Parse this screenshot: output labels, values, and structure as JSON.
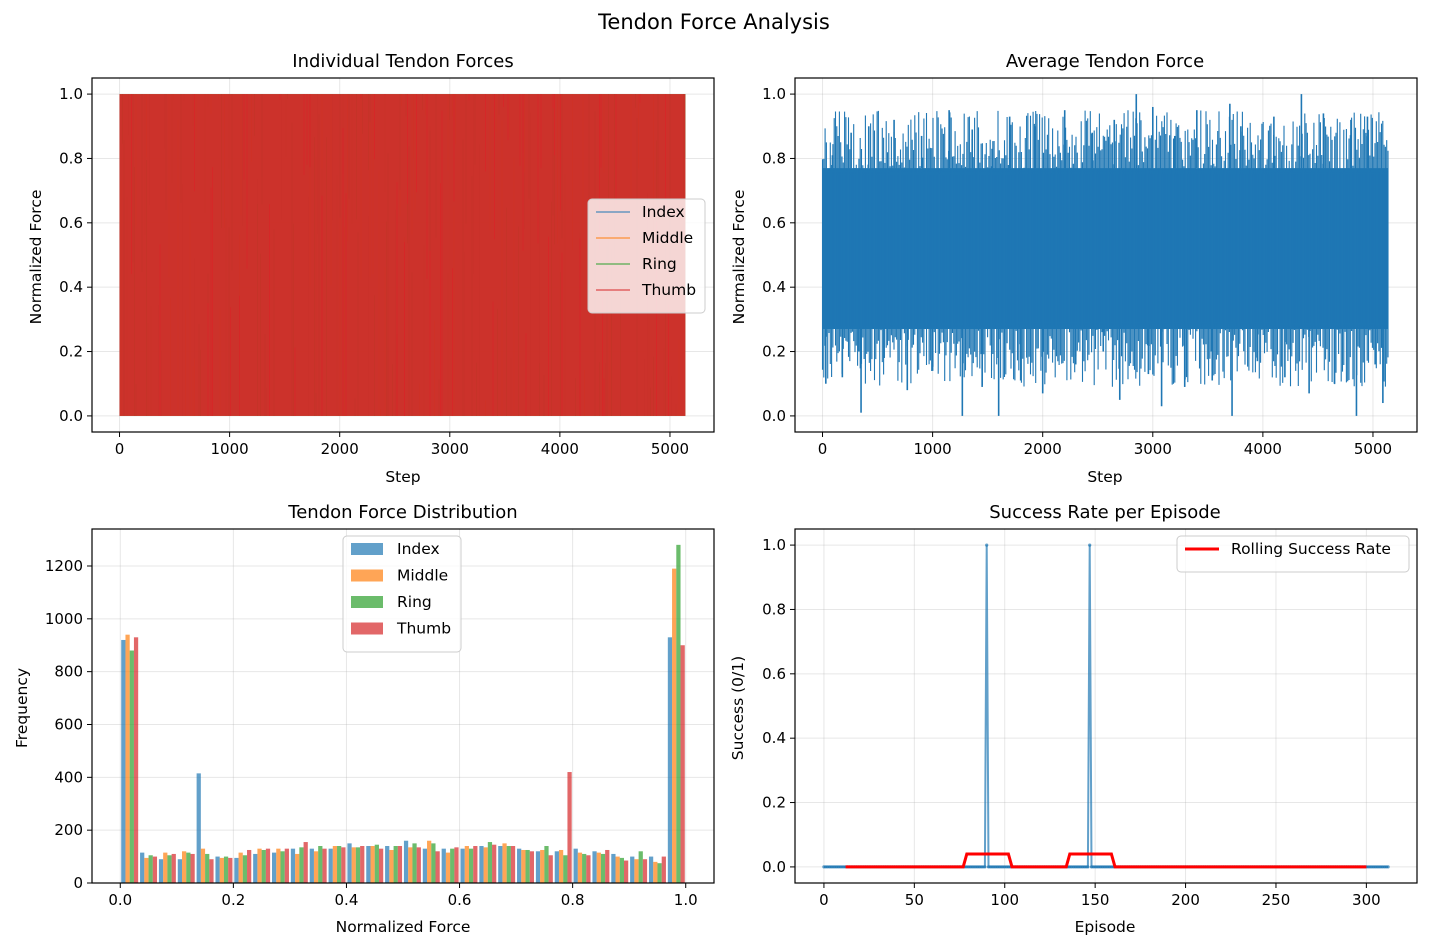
{
  "figure": {
    "title": "Tendon Force Analysis"
  },
  "colors": {
    "index": "#1f77b4",
    "middle": "#ff7f0e",
    "ring": "#2ca02c",
    "thumb": "#d62728",
    "rolling": "#ff0000"
  },
  "chart_data": [
    {
      "type": "line",
      "title": "Individual Tendon Forces",
      "xlabel": "Step",
      "ylabel": "Normalized Force",
      "xlim": [
        -250,
        5400
      ],
      "ylim": [
        -0.05,
        1.05
      ],
      "xticks": [
        0,
        1000,
        2000,
        3000,
        4000,
        5000
      ],
      "xtick_labels": [
        "0",
        "1000",
        "2000",
        "3000",
        "4000",
        "5000"
      ],
      "yticks": [
        0.0,
        0.2,
        0.4,
        0.6,
        0.8,
        1.0
      ],
      "ytick_labels": [
        "0.0",
        "0.2",
        "0.4",
        "0.6",
        "0.8",
        "1.0"
      ],
      "grid": true,
      "legend_position": "center-right",
      "x_range": [
        0,
        5140
      ],
      "series": [
        {
          "name": "Index",
          "color_key": "index",
          "range": [
            0,
            1
          ]
        },
        {
          "name": "Middle",
          "color_key": "middle",
          "range": [
            0,
            1
          ]
        },
        {
          "name": "Ring",
          "color_key": "ring",
          "range": [
            0,
            1
          ]
        },
        {
          "name": "Thumb",
          "color_key": "thumb",
          "range": [
            0,
            1
          ]
        }
      ]
    },
    {
      "type": "line",
      "title": "Average Tendon Force",
      "xlabel": "Step",
      "ylabel": "Normalized Force",
      "xlim": [
        -250,
        5400
      ],
      "ylim": [
        -0.05,
        1.05
      ],
      "xticks": [
        0,
        1000,
        2000,
        3000,
        4000,
        5000
      ],
      "xtick_labels": [
        "0",
        "1000",
        "2000",
        "3000",
        "4000",
        "5000"
      ],
      "yticks": [
        0.0,
        0.2,
        0.4,
        0.6,
        0.8,
        1.0
      ],
      "ytick_labels": [
        "0.0",
        "0.2",
        "0.4",
        "0.6",
        "0.8",
        "1.0"
      ],
      "grid": true,
      "x_range": [
        0,
        5140
      ],
      "band": {
        "low": 0.27,
        "high": 0.77
      },
      "spikes": [
        [
          30,
          0.1
        ],
        [
          90,
          0.81
        ],
        [
          180,
          0.12
        ],
        [
          260,
          0.88
        ],
        [
          330,
          0.2
        ],
        [
          350,
          0.01
        ],
        [
          420,
          0.9
        ],
        [
          560,
          0.18
        ],
        [
          650,
          0.92
        ],
        [
          770,
          0.08
        ],
        [
          900,
          0.87
        ],
        [
          1000,
          0.14
        ],
        [
          1150,
          0.95
        ],
        [
          1270,
          0.0
        ],
        [
          1360,
          0.89
        ],
        [
          1450,
          0.09
        ],
        [
          1540,
          0.83
        ],
        [
          1600,
          0.0
        ],
        [
          1700,
          0.93
        ],
        [
          1800,
          0.11
        ],
        [
          1930,
          0.9
        ],
        [
          2000,
          0.07
        ],
        [
          2200,
          0.95
        ],
        [
          2300,
          0.16
        ],
        [
          2450,
          0.88
        ],
        [
          2550,
          0.2
        ],
        [
          2650,
          0.92
        ],
        [
          2700,
          0.05
        ],
        [
          2850,
          1.0
        ],
        [
          2960,
          0.13
        ],
        [
          3000,
          0.96
        ],
        [
          3080,
          0.03
        ],
        [
          3200,
          0.87
        ],
        [
          3290,
          0.09
        ],
        [
          3400,
          0.95
        ],
        [
          3540,
          0.11
        ],
        [
          3700,
          0.97
        ],
        [
          3720,
          0.0
        ],
        [
          3800,
          0.9
        ],
        [
          3950,
          0.17
        ],
        [
          4100,
          0.93
        ],
        [
          4200,
          0.12
        ],
        [
          4350,
          1.0
        ],
        [
          4420,
          0.07
        ],
        [
          4550,
          0.94
        ],
        [
          4650,
          0.1
        ],
        [
          4800,
          0.92
        ],
        [
          4850,
          0.0
        ],
        [
          4950,
          0.93
        ],
        [
          5020,
          0.16
        ],
        [
          5090,
          0.04
        ],
        [
          5130,
          0.76
        ]
      ]
    },
    {
      "type": "bar",
      "title": "Tendon Force Distribution",
      "xlabel": "Normalized Force",
      "ylabel": "Frequency",
      "xlim": [
        -0.05,
        1.05
      ],
      "ylim": [
        0,
        1340
      ],
      "xticks": [
        0.0,
        0.2,
        0.4,
        0.6,
        0.8,
        1.0
      ],
      "xtick_labels": [
        "0.0",
        "0.2",
        "0.4",
        "0.6",
        "0.8",
        "1.0"
      ],
      "yticks": [
        0,
        200,
        400,
        600,
        800,
        1000,
        1200
      ],
      "ytick_labels": [
        "0",
        "200",
        "400",
        "600",
        "800",
        "1000",
        "1200"
      ],
      "grid": true,
      "legend_position": "top-center",
      "bins": 30,
      "bin_range": [
        0,
        1
      ],
      "series": [
        {
          "name": "Index",
          "color_key": "index",
          "values": [
            920,
            115,
            90,
            90,
            415,
            100,
            95,
            110,
            115,
            130,
            130,
            130,
            150,
            140,
            140,
            160,
            130,
            130,
            130,
            140,
            140,
            130,
            120,
            120,
            130,
            120,
            110,
            100,
            100,
            930
          ]
        },
        {
          "name": "Middle",
          "color_key": "middle",
          "values": [
            940,
            95,
            115,
            120,
            130,
            95,
            115,
            130,
            130,
            110,
            120,
            140,
            135,
            140,
            125,
            135,
            160,
            115,
            140,
            135,
            150,
            125,
            125,
            125,
            115,
            115,
            100,
            90,
            80,
            1190
          ]
        },
        {
          "name": "Ring",
          "color_key": "ring",
          "values": [
            880,
            105,
            105,
            115,
            110,
            100,
            105,
            125,
            120,
            135,
            140,
            140,
            135,
            145,
            140,
            150,
            150,
            130,
            130,
            155,
            140,
            125,
            140,
            105,
            110,
            110,
            95,
            120,
            75,
            1280
          ]
        },
        {
          "name": "Thumb",
          "color_key": "thumb",
          "values": [
            930,
            100,
            110,
            110,
            90,
            95,
            125,
            130,
            130,
            155,
            130,
            135,
            140,
            130,
            140,
            135,
            120,
            135,
            140,
            145,
            140,
            120,
            105,
            420,
            105,
            125,
            85,
            90,
            100,
            900
          ]
        }
      ]
    },
    {
      "type": "line",
      "title": "Success Rate per Episode",
      "xlabel": "Episode",
      "ylabel": "Success (0/1)",
      "xlim": [
        -16,
        328
      ],
      "ylim": [
        -0.05,
        1.05
      ],
      "xticks": [
        0,
        50,
        100,
        150,
        200,
        250,
        300
      ],
      "xtick_labels": [
        "0",
        "50",
        "100",
        "150",
        "200",
        "250",
        "300"
      ],
      "yticks": [
        0.0,
        0.2,
        0.4,
        0.6,
        0.8,
        1.0
      ],
      "ytick_labels": [
        "0.0",
        "0.2",
        "0.4",
        "0.6",
        "0.8",
        "1.0"
      ],
      "grid": true,
      "legend_position": "top-right",
      "episodes": 313,
      "success_episodes": [
        90,
        147
      ],
      "series": [
        {
          "name": "",
          "color_key": "index"
        },
        {
          "name": "Rolling Success Rate",
          "color_key": "rolling",
          "x_range": [
            12,
            300
          ],
          "steps": [
            [
              12,
              0.0
            ],
            [
              77,
              0.0
            ],
            [
              79,
              0.04
            ],
            [
              102,
              0.04
            ],
            [
              104,
              0.0
            ],
            [
              134,
              0.0
            ],
            [
              136,
              0.04
            ],
            [
              159,
              0.04
            ],
            [
              161,
              0.0
            ],
            [
              300,
              0.0
            ]
          ]
        }
      ]
    }
  ]
}
